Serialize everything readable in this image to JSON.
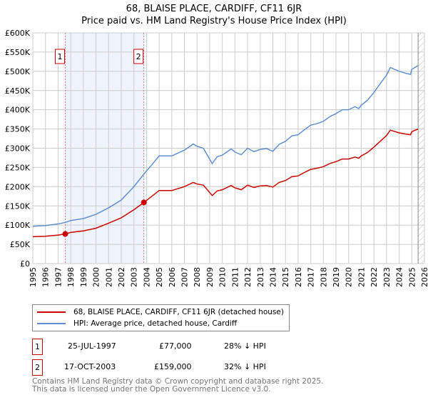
{
  "chart_data": {
    "type": "line",
    "title": "68, BLAISE PLACE, CARDIFF, CF11 6JR",
    "subtitle": "Price paid vs. HM Land Registry's House Price Index (HPI)",
    "xlim": [
      1995,
      2026
    ],
    "ylim": [
      0,
      600000
    ],
    "x_ticks": [
      "1995",
      "1996",
      "1997",
      "1998",
      "1999",
      "2000",
      "2001",
      "2002",
      "2003",
      "2004",
      "2005",
      "2006",
      "2007",
      "2008",
      "2009",
      "2010",
      "2011",
      "2012",
      "2013",
      "2014",
      "2015",
      "2016",
      "2017",
      "2018",
      "2019",
      "2020",
      "2021",
      "2022",
      "2023",
      "2024",
      "2025",
      "2026"
    ],
    "y_ticks": [
      "£0",
      "£50K",
      "£100K",
      "£150K",
      "£200K",
      "£250K",
      "£300K",
      "£350K",
      "£400K",
      "£450K",
      "£500K",
      "£550K",
      "£600K"
    ],
    "grid": true,
    "series": [
      {
        "name": "68, BLAISE PLACE, CARDIFF, CF11 6JR (detached house)",
        "color": "#cc0000",
        "x": [
          1995,
          1996,
          1997,
          1997.57,
          1998,
          1999,
          2000,
          2001,
          2002,
          2003,
          2003.8,
          2004.5,
          2005,
          2006,
          2007,
          2007.7,
          2008,
          2008.5,
          2009.2,
          2009.6,
          2010,
          2010.7,
          2011,
          2011.5,
          2012,
          2012.5,
          2013,
          2013.5,
          2014,
          2014.5,
          2015,
          2015.5,
          2016,
          2016.5,
          2017,
          2017.5,
          2018,
          2018.5,
          2019,
          2019.5,
          2020,
          2020.5,
          2020.8,
          2021,
          2021.5,
          2022,
          2022.5,
          2023,
          2023.3,
          2024,
          2024.5,
          2024.9,
          2025,
          2025.5
        ],
        "y": [
          70000,
          71000,
          74000,
          77000,
          81000,
          85000,
          92000,
          105000,
          119000,
          140000,
          159000,
          177000,
          190000,
          190000,
          200000,
          211000,
          207000,
          204000,
          177000,
          189000,
          192000,
          203000,
          197000,
          192000,
          204000,
          198000,
          202000,
          203000,
          199000,
          211000,
          216000,
          226000,
          228000,
          237000,
          245000,
          248000,
          252000,
          260000,
          265000,
          272000,
          272000,
          277000,
          274000,
          280000,
          289000,
          303000,
          318000,
          333000,
          347000,
          340000,
          337000,
          335000,
          343000,
          350000
        ]
      },
      {
        "name": "HPI: Average price, detached house, Cardiff",
        "color": "#6090d0",
        "x": [
          1995,
          1996,
          1997,
          1997.57,
          1998,
          1999,
          2000,
          2001,
          2002,
          2003,
          2003.8,
          2004.5,
          2005,
          2006,
          2007,
          2007.7,
          2008,
          2008.5,
          2009.2,
          2009.6,
          2010,
          2010.7,
          2011,
          2011.5,
          2012,
          2012.5,
          2013,
          2013.5,
          2014,
          2014.5,
          2015,
          2015.5,
          2016,
          2016.5,
          2017,
          2017.5,
          2018,
          2018.5,
          2019,
          2019.5,
          2020,
          2020.5,
          2020.8,
          2021,
          2021.5,
          2022,
          2022.5,
          2023,
          2023.3,
          2024,
          2024.5,
          2024.9,
          2025,
          2025.5
        ],
        "y": [
          97000,
          99000,
          103000,
          107000,
          112000,
          117000,
          128000,
          145000,
          165000,
          200000,
          233000,
          260000,
          280000,
          280000,
          295000,
          311000,
          305000,
          300000,
          260000,
          278000,
          282000,
          298000,
          290000,
          283000,
          300000,
          291000,
          297000,
          299000,
          292000,
          310000,
          318000,
          332000,
          335000,
          348000,
          360000,
          364000,
          370000,
          382000,
          390000,
          400000,
          400000,
          408000,
          403000,
          412000,
          425000,
          445000,
          468000,
          490000,
          510000,
          500000,
          495000,
          492000,
          505000,
          515000
        ]
      }
    ],
    "sales": [
      {
        "label": "1",
        "x": 1997.57,
        "y": 77000
      },
      {
        "label": "2",
        "x": 2003.79,
        "y": 159000
      }
    ],
    "shaded_range": [
      1997.57,
      2003.79
    ],
    "hatched_from": 2025.5,
    "legend_position": "below"
  },
  "transactions": [
    {
      "num": "1",
      "date": "25-JUL-1997",
      "price": "£77,000",
      "hpi": "28% ↓ HPI"
    },
    {
      "num": "2",
      "date": "17-OCT-2003",
      "price": "£159,000",
      "hpi": "32% ↓ HPI"
    }
  ],
  "footer": [
    "Contains HM Land Registry data © Crown copyright and database right 2025.",
    "This data is licensed under the Open Government Licence v3.0."
  ]
}
